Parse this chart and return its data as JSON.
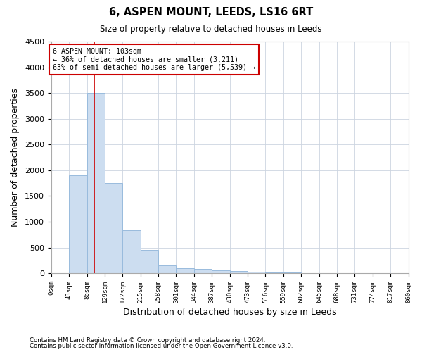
{
  "title": "6, ASPEN MOUNT, LEEDS, LS16 6RT",
  "subtitle": "Size of property relative to detached houses in Leeds",
  "xlabel": "Distribution of detached houses by size in Leeds",
  "ylabel": "Number of detached properties",
  "bar_color": "#ccddf0",
  "bar_edge_color": "#99bbdd",
  "background_color": "#ffffff",
  "grid_color": "#ccd5e0",
  "vline_x": 103,
  "vline_color": "#cc0000",
  "annotation_line1": "6 ASPEN MOUNT: 103sqm",
  "annotation_line2": "← 36% of detached houses are smaller (3,211)",
  "annotation_line3": "63% of semi-detached houses are larger (5,539) →",
  "annotation_box_color": "#ffffff",
  "annotation_box_edge": "#cc0000",
  "bin_edges": [
    0,
    43,
    86,
    129,
    172,
    215,
    258,
    301,
    344,
    387,
    430,
    473,
    516,
    559,
    602,
    645,
    688,
    731,
    774,
    817,
    860
  ],
  "bar_heights": [
    5,
    1900,
    3500,
    1750,
    830,
    450,
    155,
    100,
    80,
    58,
    45,
    25,
    15,
    10,
    7,
    5,
    4,
    3,
    2,
    1
  ],
  "ylim": [
    0,
    4500
  ],
  "yticks": [
    0,
    500,
    1000,
    1500,
    2000,
    2500,
    3000,
    3500,
    4000,
    4500
  ],
  "footnote1": "Contains HM Land Registry data © Crown copyright and database right 2024.",
  "footnote2": "Contains public sector information licensed under the Open Government Licence v3.0."
}
